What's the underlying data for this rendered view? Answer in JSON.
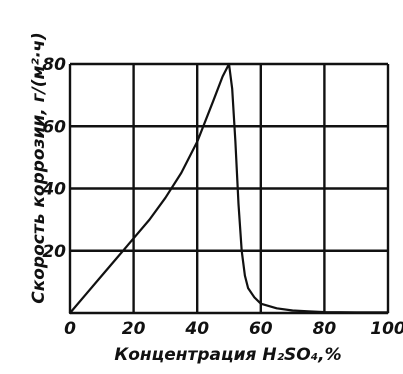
{
  "chart_data": {
    "type": "line",
    "title": "",
    "xlabel": "Концентрация H₂SO₄,%",
    "ylabel": "Скорость коррозии, г/(м²·ч)",
    "xlim": [
      0,
      100
    ],
    "ylim": [
      0,
      80
    ],
    "x_ticks": [
      "0",
      "20",
      "40",
      "60",
      "80",
      "100"
    ],
    "y_ticks": [
      "20",
      "40",
      "60",
      "80"
    ],
    "grid": true,
    "series": [
      {
        "x": [
          0,
          5,
          10,
          15,
          20,
          25,
          30,
          35,
          40,
          45,
          48,
          50,
          51,
          52,
          53,
          54,
          55,
          56,
          58,
          60,
          65,
          70,
          75,
          80,
          90,
          100
        ],
        "y": [
          0,
          6,
          12,
          18,
          24,
          30,
          37,
          45,
          55,
          68,
          76,
          80,
          72,
          55,
          35,
          20,
          12,
          8,
          5,
          3,
          1.5,
          0.8,
          0.5,
          0.3,
          0.2,
          0.2
        ]
      }
    ]
  },
  "colors": {
    "line": "#111111",
    "grid": "#111111",
    "background": "#ffffff"
  }
}
